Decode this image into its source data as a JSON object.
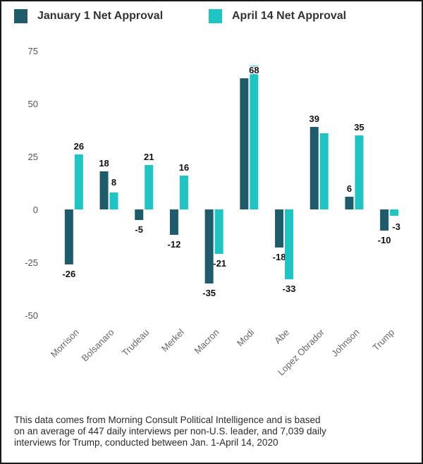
{
  "chart_data": {
    "type": "bar",
    "title": "",
    "xlabel": "",
    "ylabel": "",
    "ylim": [
      -50,
      75
    ],
    "yticks": [
      75,
      50,
      25,
      0,
      -25,
      -50
    ],
    "grid": false,
    "legend_position": "top-left",
    "categories": [
      "Morrison",
      "Bolsanaro",
      "Trudeau",
      "Merkel",
      "Macron",
      "Modi",
      "Abe",
      "Lopez Obrador",
      "Johnson",
      "Trump"
    ],
    "series": [
      {
        "name": "January 1 Net Approval",
        "color": "#1f5c6b",
        "values": [
          -26,
          18,
          -5,
          -12,
          -35,
          62,
          -18,
          39,
          6,
          -10
        ],
        "labels": [
          "-26",
          "18",
          "-5",
          "-12",
          "-35",
          "",
          "-18",
          "39",
          "6",
          "-10"
        ]
      },
      {
        "name": "April 14 Net Approval",
        "color": "#1fc4c4",
        "values": [
          26,
          8,
          21,
          16,
          -21,
          68,
          -33,
          36,
          35,
          -3
        ],
        "labels": [
          "26",
          "8",
          "21",
          "16",
          "-21",
          "68",
          "-33",
          "",
          "35",
          "-3"
        ]
      }
    ]
  },
  "footnote": {
    "lines": [
      "This data comes from Morning Consult Political Intelligence and is based",
      "on an average of 447 daily interviews per non-U.S. leader, and 7,039 daily",
      "interviews for Trump, conducted between Jan. 1-April 14, 2020"
    ]
  }
}
